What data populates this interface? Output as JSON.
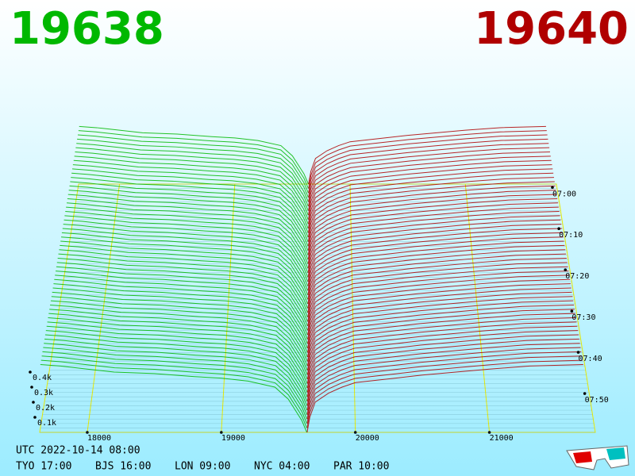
{
  "chart_data": {
    "type": "depth3d",
    "bid_price": 19638,
    "ask_price": 19640,
    "bid": {
      "color": "#00b800",
      "prices": [
        17650,
        17800,
        18000,
        18200,
        18500,
        18800,
        19000,
        19200,
        19400,
        19500,
        19600,
        19638
      ],
      "depth": [
        0.45,
        0.44,
        0.42,
        0.4,
        0.39,
        0.37,
        0.36,
        0.34,
        0.3,
        0.22,
        0.08,
        0
      ]
    },
    "ask": {
      "color": "#b00000",
      "prices": [
        19640,
        19660,
        19700,
        19800,
        19900,
        20000,
        20300,
        20500,
        21000,
        21300,
        21700
      ],
      "depth": [
        0,
        0.1,
        0.2,
        0.26,
        0.3,
        0.33,
        0.36,
        0.38,
        0.42,
        0.44,
        0.45
      ]
    },
    "xlim": [
      17645,
      21790
    ],
    "xticks": [
      18000,
      19000,
      20000,
      21000
    ],
    "zticks": [
      {
        "value": 0.1,
        "label": "0.1k"
      },
      {
        "value": 0.2,
        "label": "0.2k"
      },
      {
        "value": 0.3,
        "label": "0.3k"
      },
      {
        "value": 0.4,
        "label": "0.4k"
      }
    ],
    "time_ticks": [
      "07:00",
      "07:10",
      "07:20",
      "07:30",
      "07:40",
      "07:50"
    ],
    "footer": {
      "utc": "UTC 2022-10-14 08:00",
      "cities": [
        "TYO 17:00",
        "BJS 16:00",
        "LON 09:00",
        "NYC 04:00",
        "PAR 10:00"
      ]
    }
  }
}
